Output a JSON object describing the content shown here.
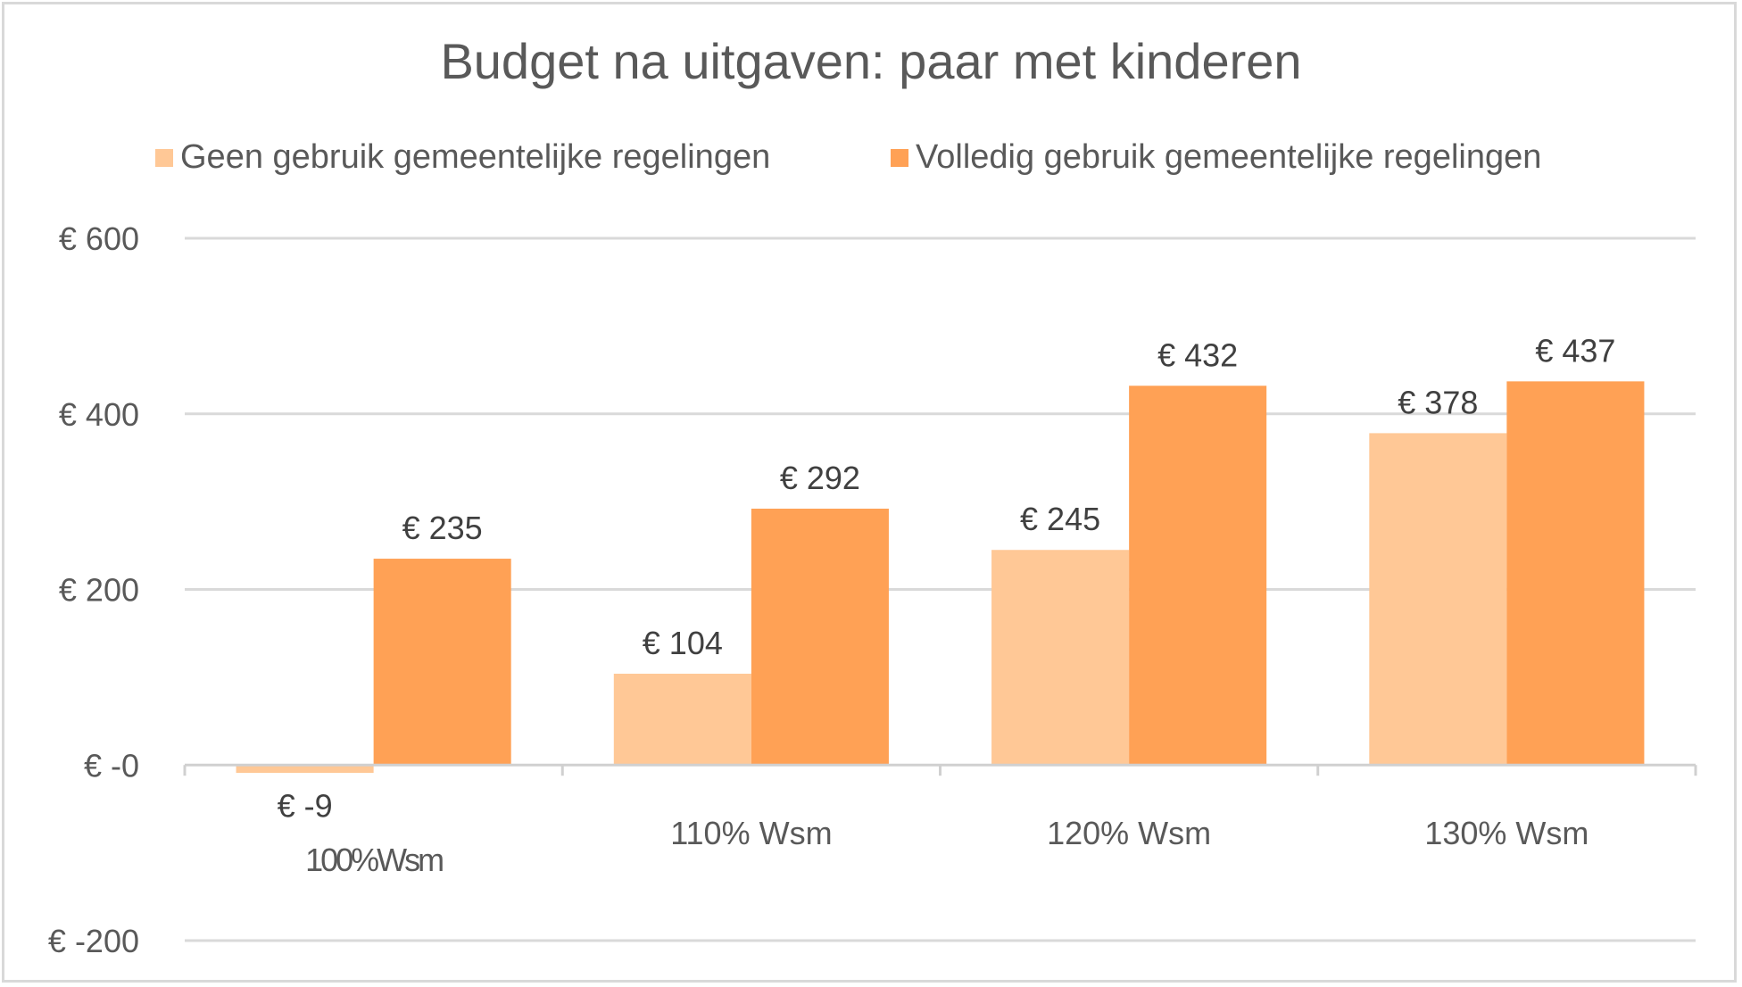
{
  "chart_data": {
    "type": "bar",
    "title": "Budget na uitgaven: paar met kinderen",
    "xlabel": "",
    "ylabel": "",
    "categories": [
      "100%Wsm",
      "110% Wsm",
      "120% Wsm",
      "130% Wsm"
    ],
    "series": [
      {
        "name": "Geen gebruik gemeentelijke regelingen",
        "color": "#FFC896",
        "values": [
          -9,
          104,
          245,
          378
        ],
        "labels": [
          "€ -9",
          "€ 104",
          "€ 245",
          "€ 378"
        ]
      },
      {
        "name": "Volledig gebruik gemeentelijke regelingen",
        "color": "#FFA155",
        "values": [
          235,
          292,
          432,
          437
        ],
        "labels": [
          "€ 235",
          "€ 292",
          "€ 432",
          "€ 437"
        ]
      }
    ],
    "ylim": [
      -200,
      600
    ],
    "yticks": [
      -200,
      0,
      200,
      400,
      600
    ],
    "ytick_labels": [
      "€ -200",
      "€ -0",
      "€ 200",
      "€ 400",
      "€ 600"
    ],
    "grid": true,
    "legend_position": "top"
  }
}
